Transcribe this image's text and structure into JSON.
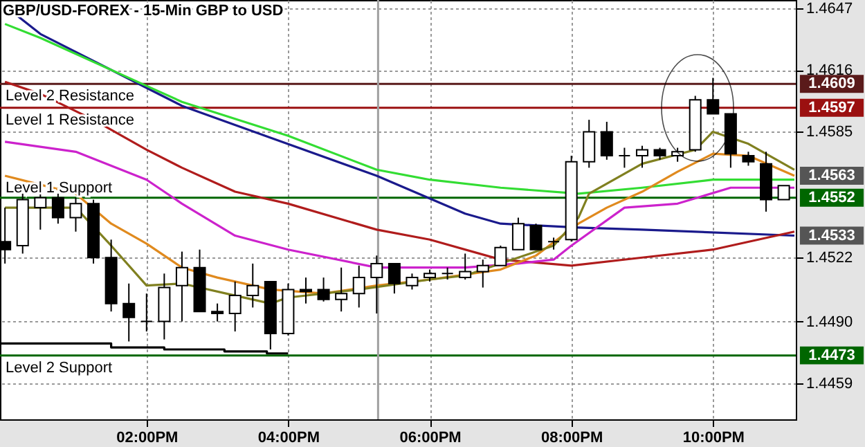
{
  "chart_data": {
    "type": "candlestick",
    "title": "GBP/USD-FOREX - 15-Min GBP to USD",
    "x": [
      12,
      12.25,
      12.5,
      12.75,
      13,
      13.25,
      13.5,
      13.75,
      14,
      14.25,
      14.5,
      14.75,
      15,
      15.25,
      15.5,
      15.75,
      16,
      16.25,
      16.5,
      16.75,
      17,
      17.25,
      17.5,
      17.75,
      18,
      18.25,
      18.5,
      18.75,
      19,
      19.25,
      19.5,
      19.75,
      20,
      20.25,
      20.5,
      20.75,
      21,
      21.25,
      21.5,
      21.75,
      22,
      22.25,
      22.5,
      22.75,
      23
    ],
    "ohlc": [
      [
        1.453,
        1.4547,
        1.4519,
        1.4526
      ],
      [
        1.4528,
        1.4554,
        1.4524,
        1.4551
      ],
      [
        1.4547,
        1.4554,
        1.4536,
        1.4552
      ],
      [
        1.4552,
        1.4554,
        1.4539,
        1.4542
      ],
      [
        1.4542,
        1.4552,
        1.4535,
        1.4549
      ],
      [
        1.4549,
        1.4551,
        1.4519,
        1.4522
      ],
      [
        1.4522,
        1.4531,
        1.4495,
        1.4499
      ],
      [
        1.4499,
        1.4509,
        1.448,
        1.4492
      ],
      [
        1.449,
        1.4504,
        1.4485,
        1.449
      ],
      [
        1.449,
        1.4514,
        1.4481,
        1.4507
      ],
      [
        1.4508,
        1.4525,
        1.449,
        1.4517
      ],
      [
        1.4517,
        1.4526,
        1.4495,
        1.4495
      ],
      [
        1.4495,
        1.4499,
        1.449,
        1.4494
      ],
      [
        1.4494,
        1.451,
        1.4485,
        1.4503
      ],
      [
        1.4503,
        1.4519,
        1.4497,
        1.4508
      ],
      [
        1.451,
        1.451,
        1.4476,
        1.4484
      ],
      [
        1.4484,
        1.4509,
        1.4483,
        1.4506
      ],
      [
        1.4506,
        1.4512,
        1.4499,
        1.4505
      ],
      [
        1.4506,
        1.4512,
        1.45,
        1.4501
      ],
      [
        1.4501,
        1.4517,
        1.4495,
        1.4504
      ],
      [
        1.4504,
        1.4518,
        1.4497,
        1.4512
      ],
      [
        1.4512,
        1.4523,
        1.4494,
        1.4519
      ],
      [
        1.4519,
        1.4519,
        1.4504,
        1.4509
      ],
      [
        1.4508,
        1.4514,
        1.4506,
        1.4512
      ],
      [
        1.4512,
        1.4516,
        1.451,
        1.4514
      ],
      [
        1.4514,
        1.4517,
        1.4511,
        1.4514
      ],
      [
        1.4512,
        1.4524,
        1.4511,
        1.4515
      ],
      [
        1.4515,
        1.4521,
        1.4507,
        1.4518
      ],
      [
        1.4518,
        1.4528,
        1.4518,
        1.4527
      ],
      [
        1.4526,
        1.4542,
        1.4526,
        1.4539
      ],
      [
        1.4538,
        1.4539,
        1.4526,
        1.4526
      ],
      [
        1.453,
        1.4532,
        1.4526,
        1.453
      ],
      [
        1.4531,
        1.4573,
        1.453,
        1.457
      ],
      [
        1.457,
        1.4591,
        1.4567,
        1.4585
      ],
      [
        1.4585,
        1.459,
        1.4571,
        1.4573
      ],
      [
        1.4573,
        1.4577,
        1.4567,
        1.4573
      ],
      [
        1.4573,
        1.4578,
        1.4567,
        1.4576
      ],
      [
        1.4576,
        1.4577,
        1.4571,
        1.4573
      ],
      [
        1.4573,
        1.4577,
        1.457,
        1.4575
      ],
      [
        1.4576,
        1.4603,
        1.4575,
        1.4601
      ],
      [
        1.4601,
        1.4612,
        1.4594,
        1.4594
      ],
      [
        1.4594,
        1.4594,
        1.4567,
        1.4574
      ],
      [
        1.4573,
        1.4575,
        1.4568,
        1.457
      ],
      [
        1.4569,
        1.4575,
        1.4545,
        1.4551
      ],
      [
        1.4551,
        1.4558,
        1.4551,
        1.4558
      ]
    ],
    "series": [
      {
        "type": "line",
        "color": "#1a1a8c",
        "x": [
          12,
          12.5,
          14,
          14.5,
          15.75,
          17.25,
          18.5,
          19,
          20.1,
          21,
          23.15
        ],
        "values": [
          1.4648,
          1.4634,
          1.4607,
          1.4598,
          1.4582,
          1.4563,
          1.4544,
          1.4539,
          1.4537,
          1.4536,
          1.4533
        ]
      },
      {
        "type": "line",
        "color": "#33dd33",
        "x": [
          12,
          12.5,
          14,
          14.5,
          16,
          17.25,
          18,
          19,
          20.1,
          21,
          22,
          23.15
        ],
        "values": [
          1.4639,
          1.4632,
          1.4608,
          1.46,
          1.4583,
          1.4566,
          1.4561,
          1.4557,
          1.4554,
          1.4557,
          1.4561,
          1.4561
        ]
      },
      {
        "type": "line",
        "color": "#b01c1c",
        "x": [
          12,
          12.5,
          13.25,
          14,
          14.5,
          15.25,
          16,
          17.25,
          18,
          19,
          20,
          21,
          22,
          23.15
        ],
        "values": [
          1.461,
          1.4604,
          1.4591,
          1.4576,
          1.4567,
          1.4555,
          1.4549,
          1.4536,
          1.4531,
          1.4521,
          1.4518,
          1.4522,
          1.4526,
          1.4535
        ]
      },
      {
        "type": "line",
        "color": "#cc22cc",
        "x": [
          12,
          13,
          14,
          14.5,
          15.25,
          16,
          17.25,
          18.5,
          19.25,
          19.75,
          20,
          20.75,
          21.5,
          22.25,
          23.15
        ],
        "values": [
          1.458,
          1.4575,
          1.4561,
          1.4549,
          1.4533,
          1.4526,
          1.4517,
          1.4517,
          1.4519,
          1.4521,
          1.4528,
          1.4547,
          1.4549,
          1.4557,
          1.4557
        ]
      },
      {
        "type": "line",
        "color": "#e08a1e",
        "x": [
          12,
          13,
          13.5,
          14,
          14.5,
          15,
          15.75,
          16.5,
          17.25,
          18,
          19,
          19.5,
          20.1,
          20.5,
          21,
          21.5,
          22,
          22.5,
          23.15
        ],
        "values": [
          1.4563,
          1.4554,
          1.4539,
          1.4529,
          1.4517,
          1.4512,
          1.4506,
          1.4504,
          1.4508,
          1.4511,
          1.4516,
          1.4523,
          1.4539,
          1.4547,
          1.4555,
          1.4565,
          1.4574,
          1.4573,
          1.4563
        ]
      },
      {
        "type": "line",
        "color": "#808020",
        "x": [
          12,
          13,
          13.5,
          14,
          14.5,
          15.25,
          15.75,
          16,
          17,
          18,
          18.5,
          19.5,
          19.75,
          20.1,
          20.25,
          21,
          21.75,
          22,
          22.5,
          23.15
        ],
        "values": [
          1.4547,
          1.4547,
          1.4528,
          1.4508,
          1.4509,
          1.4503,
          1.4499,
          1.4502,
          1.4506,
          1.4511,
          1.4513,
          1.4525,
          1.4528,
          1.4542,
          1.4554,
          1.4569,
          1.4576,
          1.4585,
          1.4579,
          1.4566
        ]
      },
      {
        "type": "step",
        "color": "#000000",
        "x": [
          11.93,
          13.5,
          14.25,
          15.1,
          15.7,
          16
        ],
        "values": [
          1.4479,
          1.4477,
          1.4476,
          1.4475,
          1.4474,
          1.4474
        ]
      }
    ],
    "ref_lines": [
      {
        "axis": "y",
        "value": 1.4609,
        "label": "Level 2 Resistance",
        "color": "#5a1a1a"
      },
      {
        "axis": "y",
        "value": 1.4597,
        "label": "Level 1 Resistance",
        "color": "#9b1010"
      },
      {
        "axis": "y",
        "value": 1.4552,
        "label": "Level 1 Support",
        "color": "#006600"
      },
      {
        "axis": "y",
        "value": 1.4473,
        "label": "Level 2 Support",
        "color": "#006600"
      },
      {
        "axis": "x",
        "value": 17.27,
        "label": null,
        "color": "#a0a0a0"
      }
    ],
    "annotations": [
      "1.4609",
      "1.4597",
      "1.4563",
      "1.4552",
      "1.4533",
      "1.4473"
    ],
    "xlim": [
      11.93,
      23.17
    ],
    "ylim": [
      1.4441,
      1.4651
    ],
    "xticks": [
      {
        "value": 14,
        "label": "02:00PM"
      },
      {
        "value": 16,
        "label": "04:00PM"
      },
      {
        "value": 18,
        "label": "06:00PM"
      },
      {
        "value": 20,
        "label": "08:00PM"
      },
      {
        "value": 22,
        "label": "10:00PM"
      }
    ],
    "yticks": [
      1.4459,
      {
        "value": 1.449,
        "label": "1.4490"
      },
      1.4522,
      1.4585,
      1.4616,
      1.4647
    ],
    "grid": true
  }
}
